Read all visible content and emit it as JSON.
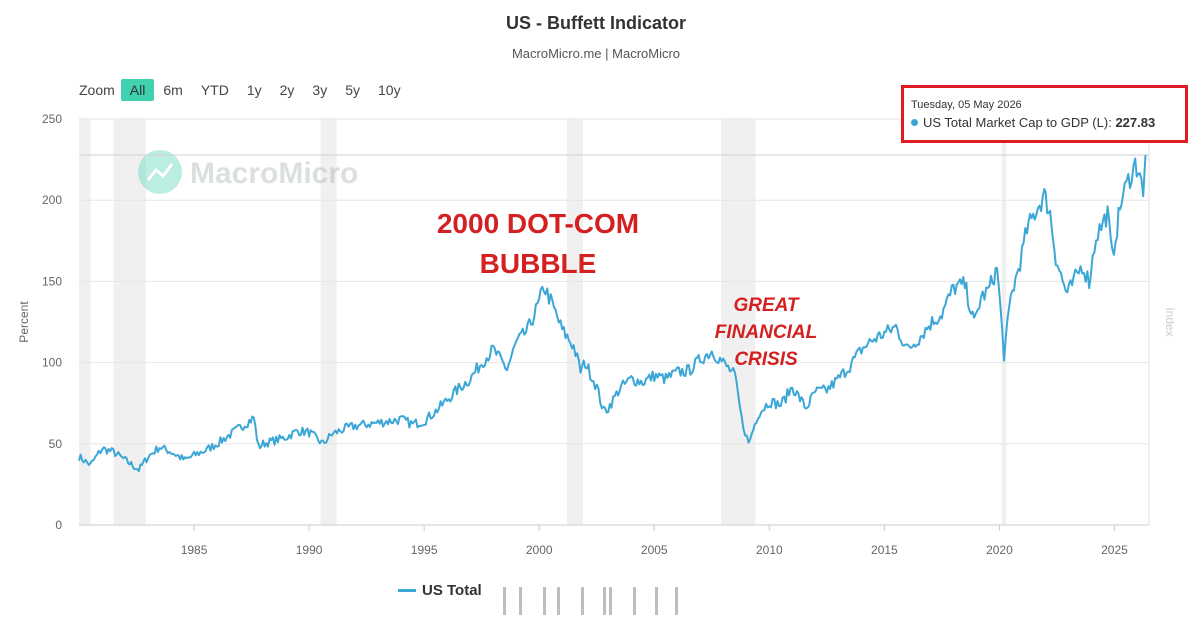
{
  "header": {
    "title": "US - Buffett Indicator",
    "subtitle": "MacroMicro.me | MacroMicro"
  },
  "zoom": {
    "label": "Zoom",
    "buttons": [
      "All",
      "6m",
      "YTD",
      "1y",
      "2y",
      "3y",
      "5y",
      "10y"
    ],
    "active": "All"
  },
  "watermark": {
    "text": "MacroMicro"
  },
  "tooltip": {
    "date": "Tuesday, 05 May 2026",
    "series": "US Total Market Cap to GDP (L): ",
    "value": "227.83"
  },
  "annotations": {
    "dotcom_line1": "2000 DOT-COM",
    "dotcom_line2": "BUBBLE",
    "gfc_line1": "GREAT",
    "gfc_line2": "FINANCIAL",
    "gfc_line3": "CRISIS"
  },
  "legend": {
    "label": "US Total M"
  },
  "colors": {
    "line": "#3ca7d6",
    "active_zoom": "#3fd1b0",
    "annotation": "#d42020",
    "highlight_box": "#e01b24",
    "recession": "#f0f0f0"
  },
  "chart_data": {
    "type": "line",
    "title": "US - Buffett Indicator",
    "ylabel": "Percent",
    "ylabel_right": "Index",
    "ylim": [
      0,
      250
    ],
    "xlim": [
      1980.0,
      2026.5
    ],
    "y_ticks": [
      "0",
      "50",
      "100",
      "150",
      "200",
      "250"
    ],
    "x_ticks": [
      "1985",
      "1990",
      "1995",
      "2000",
      "2005",
      "2010",
      "2015",
      "2020",
      "2025"
    ],
    "recessions": [
      [
        1980.0,
        1980.5
      ],
      [
        1981.5,
        1982.9
      ],
      [
        1990.5,
        1991.2
      ],
      [
        2001.2,
        2001.9
      ],
      [
        2007.9,
        2009.4
      ],
      [
        2020.1,
        2020.3
      ]
    ],
    "series": [
      {
        "name": "US Total Market Cap to GDP (L)",
        "points": [
          [
            1980.0,
            42
          ],
          [
            1980.5,
            37
          ],
          [
            1981.0,
            47
          ],
          [
            1981.5,
            45
          ],
          [
            1982.0,
            40
          ],
          [
            1982.6,
            34
          ],
          [
            1983.0,
            42
          ],
          [
            1983.5,
            48
          ],
          [
            1984.0,
            45
          ],
          [
            1984.6,
            40
          ],
          [
            1985.0,
            43
          ],
          [
            1985.5,
            46
          ],
          [
            1986.0,
            50
          ],
          [
            1986.5,
            55
          ],
          [
            1987.0,
            60
          ],
          [
            1987.6,
            66
          ],
          [
            1987.8,
            48
          ],
          [
            1988.0,
            50
          ],
          [
            1988.5,
            52
          ],
          [
            1989.0,
            54
          ],
          [
            1989.5,
            58
          ],
          [
            1990.0,
            57
          ],
          [
            1990.6,
            50
          ],
          [
            1991.0,
            56
          ],
          [
            1991.5,
            59
          ],
          [
            1992.0,
            61
          ],
          [
            1992.5,
            62
          ],
          [
            1993.0,
            63
          ],
          [
            1993.5,
            64
          ],
          [
            1994.0,
            65
          ],
          [
            1994.5,
            62
          ],
          [
            1995.0,
            64
          ],
          [
            1995.5,
            70
          ],
          [
            1996.0,
            77
          ],
          [
            1996.5,
            84
          ],
          [
            1997.0,
            90
          ],
          [
            1997.5,
            100
          ],
          [
            1998.0,
            108
          ],
          [
            1998.6,
            96
          ],
          [
            1999.0,
            112
          ],
          [
            1999.5,
            120
          ],
          [
            2000.0,
            137
          ],
          [
            2000.2,
            147
          ],
          [
            2000.5,
            138
          ],
          [
            2001.0,
            120
          ],
          [
            2001.5,
            110
          ],
          [
            2001.8,
            95
          ],
          [
            2002.0,
            100
          ],
          [
            2002.5,
            85
          ],
          [
            2002.8,
            70
          ],
          [
            2003.0,
            72
          ],
          [
            2003.5,
            84
          ],
          [
            2004.0,
            90
          ],
          [
            2004.5,
            88
          ],
          [
            2005.0,
            92
          ],
          [
            2005.5,
            90
          ],
          [
            2006.0,
            94
          ],
          [
            2006.5,
            95
          ],
          [
            2007.0,
            102
          ],
          [
            2007.5,
            107
          ],
          [
            2008.0,
            100
          ],
          [
            2008.5,
            92
          ],
          [
            2008.8,
            65
          ],
          [
            2009.1,
            50
          ],
          [
            2009.5,
            68
          ],
          [
            2010.0,
            76
          ],
          [
            2010.5,
            74
          ],
          [
            2011.0,
            85
          ],
          [
            2011.6,
            72
          ],
          [
            2012.0,
            82
          ],
          [
            2012.5,
            83
          ],
          [
            2013.0,
            90
          ],
          [
            2013.5,
            98
          ],
          [
            2014.0,
            108
          ],
          [
            2014.5,
            114
          ],
          [
            2015.0,
            118
          ],
          [
            2015.5,
            122
          ],
          [
            2016.0,
            108
          ],
          [
            2016.5,
            115
          ],
          [
            2017.0,
            124
          ],
          [
            2017.5,
            130
          ],
          [
            2018.0,
            146
          ],
          [
            2018.5,
            148
          ],
          [
            2018.9,
            124
          ],
          [
            2019.2,
            140
          ],
          [
            2019.5,
            144
          ],
          [
            2019.9,
            158
          ],
          [
            2020.2,
            105
          ],
          [
            2020.5,
            140
          ],
          [
            2020.9,
            162
          ],
          [
            2021.2,
            182
          ],
          [
            2021.6,
            194
          ],
          [
            2021.95,
            203
          ],
          [
            2022.2,
            192
          ],
          [
            2022.45,
            165
          ],
          [
            2022.75,
            150
          ],
          [
            2022.95,
            142
          ],
          [
            2023.3,
            152
          ],
          [
            2023.6,
            160
          ],
          [
            2023.9,
            150
          ],
          [
            2024.2,
            178
          ],
          [
            2024.5,
            186
          ],
          [
            2024.7,
            192
          ],
          [
            2024.9,
            165
          ],
          [
            2025.05,
            178
          ],
          [
            2025.3,
            200
          ],
          [
            2025.6,
            212
          ],
          [
            2025.9,
            222
          ],
          [
            2026.1,
            218
          ],
          [
            2026.25,
            200
          ],
          [
            2026.35,
            227.83
          ]
        ]
      }
    ]
  }
}
